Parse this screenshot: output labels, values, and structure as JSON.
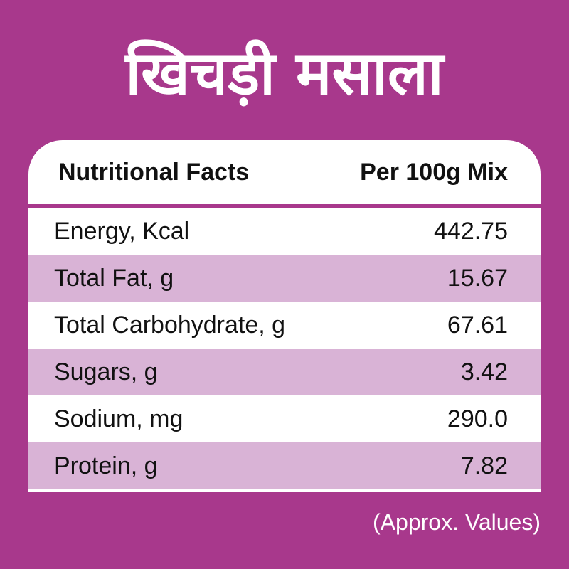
{
  "title": "खिचड़ी मसाला",
  "table": {
    "header": {
      "label": "Nutritional Facts",
      "value": "Per 100g Mix"
    },
    "rows": [
      {
        "label": "Energy, Kcal",
        "value": "442.75"
      },
      {
        "label": "Total Fat, g",
        "value": "15.67"
      },
      {
        "label": "Total Carbohydrate, g",
        "value": "67.61"
      },
      {
        "label": "Sugars, g",
        "value": "3.42"
      },
      {
        "label": "Sodium, mg",
        "value": "290.0"
      },
      {
        "label": "Protein, g",
        "value": "7.82"
      }
    ]
  },
  "note": "(Approx. Values)",
  "colors": {
    "background": "#A8388C",
    "row_alt": "#D9B3D6",
    "row": "#FFFFFF"
  }
}
